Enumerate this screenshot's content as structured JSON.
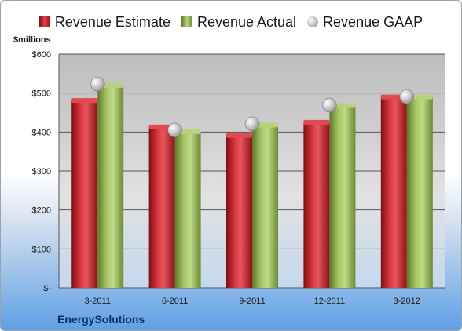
{
  "legend": {
    "estimate": "Revenue Estimate",
    "actual": "Revenue Actual",
    "gaap": "Revenue GAAP"
  },
  "unit_label": "$millions",
  "company": "EnergySolutions",
  "colors": {
    "estimate": "#c0262d",
    "actual": "#8fb04a",
    "gaap": "#b4b4b4",
    "plot_background": "#c8c8c8"
  },
  "chart_data": {
    "type": "bar",
    "categories": [
      "3-2011",
      "6-2011",
      "9-2011",
      "12-2011",
      "3-2012"
    ],
    "series": [
      {
        "name": "Revenue Estimate",
        "type": "bar",
        "values": [
          481,
          413,
          391,
          425,
          490
        ]
      },
      {
        "name": "Revenue Actual",
        "type": "bar",
        "values": [
          520,
          401,
          418,
          468,
          490
        ]
      },
      {
        "name": "Revenue GAAP",
        "type": "scatter",
        "values": [
          523,
          405,
          421,
          469,
          491
        ]
      }
    ],
    "ylim": [
      0,
      600
    ],
    "yticks": [
      0,
      100,
      200,
      300,
      400,
      500,
      600
    ],
    "ytick_labels": [
      "$-",
      "$100",
      "$200",
      "$300",
      "$400",
      "$500",
      "$600"
    ],
    "legend_position": "top",
    "grid": true
  }
}
